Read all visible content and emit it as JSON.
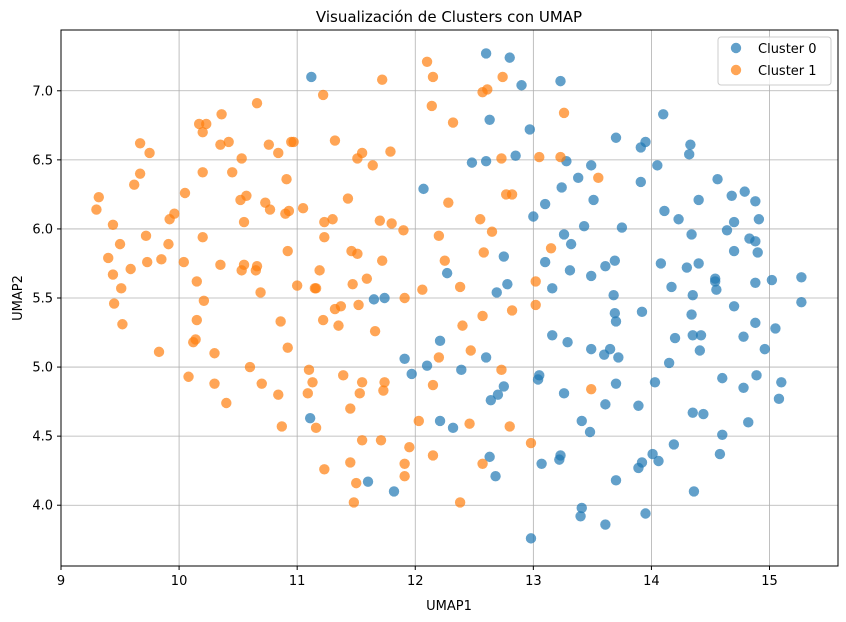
{
  "chart_data": {
    "type": "scatter",
    "title": "Visualización de Clusters con UMAP",
    "xlabel": "UMAP1",
    "ylabel": "UMAP2",
    "xlim": [
      9.0,
      15.58
    ],
    "ylim": [
      3.56,
      7.44
    ],
    "xticks": [
      9,
      10,
      11,
      12,
      13,
      14,
      15
    ],
    "yticks": [
      4.0,
      4.5,
      5.0,
      5.5,
      6.0,
      6.5,
      7.0
    ],
    "xtick_labels": [
      "9",
      "10",
      "11",
      "12",
      "13",
      "14",
      "15"
    ],
    "ytick_labels": [
      "4.0",
      "4.5",
      "5.0",
      "5.5",
      "6.0",
      "6.5",
      "7.0"
    ],
    "grid": true,
    "legend_position": "top-right",
    "series": [
      {
        "name": "Cluster 0",
        "color": "#1f77b4",
        "points": [
          [
            11.12,
            7.1
          ],
          [
            12.6,
            7.27
          ],
          [
            12.8,
            7.24
          ],
          [
            13.23,
            7.07
          ],
          [
            12.9,
            7.04
          ],
          [
            14.1,
            6.83
          ],
          [
            12.63,
            6.79
          ],
          [
            12.97,
            6.72
          ],
          [
            13.7,
            6.66
          ],
          [
            13.95,
            6.63
          ],
          [
            14.33,
            6.61
          ],
          [
            14.32,
            6.54
          ],
          [
            13.91,
            6.59
          ],
          [
            12.85,
            6.53
          ],
          [
            12.6,
            6.49
          ],
          [
            12.48,
            6.48
          ],
          [
            13.28,
            6.49
          ],
          [
            13.49,
            6.46
          ],
          [
            14.05,
            6.46
          ],
          [
            14.56,
            6.36
          ],
          [
            13.38,
            6.37
          ],
          [
            13.24,
            6.3
          ],
          [
            13.91,
            6.34
          ],
          [
            14.79,
            6.27
          ],
          [
            14.68,
            6.24
          ],
          [
            14.88,
            6.2
          ],
          [
            14.4,
            6.21
          ],
          [
            13.51,
            6.21
          ],
          [
            13.1,
            6.18
          ],
          [
            12.07,
            6.29
          ],
          [
            14.11,
            6.13
          ],
          [
            14.23,
            6.07
          ],
          [
            14.91,
            6.07
          ],
          [
            14.7,
            6.05
          ],
          [
            13.0,
            6.09
          ],
          [
            13.75,
            6.01
          ],
          [
            13.43,
            6.02
          ],
          [
            14.64,
            5.99
          ],
          [
            14.34,
            5.96
          ],
          [
            13.26,
            5.96
          ],
          [
            14.83,
            5.93
          ],
          [
            14.88,
            5.91
          ],
          [
            13.32,
            5.89
          ],
          [
            14.7,
            5.84
          ],
          [
            14.9,
            5.83
          ],
          [
            12.75,
            5.8
          ],
          [
            13.69,
            5.77
          ],
          [
            14.08,
            5.75
          ],
          [
            13.61,
            5.73
          ],
          [
            14.3,
            5.72
          ],
          [
            14.4,
            5.75
          ],
          [
            13.31,
            5.7
          ],
          [
            13.1,
            5.76
          ],
          [
            12.27,
            5.68
          ],
          [
            15.27,
            5.65
          ],
          [
            14.54,
            5.64
          ],
          [
            14.54,
            5.62
          ],
          [
            12.78,
            5.6
          ],
          [
            13.49,
            5.66
          ],
          [
            14.17,
            5.58
          ],
          [
            14.88,
            5.61
          ],
          [
            15.02,
            5.63
          ],
          [
            13.16,
            5.57
          ],
          [
            12.69,
            5.54
          ],
          [
            13.68,
            5.52
          ],
          [
            14.35,
            5.52
          ],
          [
            14.55,
            5.56
          ],
          [
            14.7,
            5.44
          ],
          [
            15.27,
            5.47
          ],
          [
            11.65,
            5.49
          ],
          [
            11.74,
            5.5
          ],
          [
            13.92,
            5.4
          ],
          [
            13.69,
            5.39
          ],
          [
            14.34,
            5.38
          ],
          [
            13.7,
            5.33
          ],
          [
            14.88,
            5.32
          ],
          [
            15.05,
            5.28
          ],
          [
            14.42,
            5.23
          ],
          [
            13.16,
            5.23
          ],
          [
            14.35,
            5.23
          ],
          [
            14.2,
            5.21
          ],
          [
            14.78,
            5.22
          ],
          [
            12.21,
            5.19
          ],
          [
            13.29,
            5.18
          ],
          [
            13.49,
            5.13
          ],
          [
            13.65,
            5.13
          ],
          [
            14.41,
            5.12
          ],
          [
            14.96,
            5.13
          ],
          [
            13.6,
            5.09
          ],
          [
            13.72,
            5.07
          ],
          [
            12.6,
            5.07
          ],
          [
            11.91,
            5.06
          ],
          [
            14.15,
            5.03
          ],
          [
            12.1,
            5.01
          ],
          [
            11.97,
            4.95
          ],
          [
            12.39,
            4.98
          ],
          [
            13.05,
            4.94
          ],
          [
            13.04,
            4.91
          ],
          [
            14.6,
            4.92
          ],
          [
            14.89,
            4.94
          ],
          [
            14.03,
            4.89
          ],
          [
            13.7,
            4.88
          ],
          [
            15.1,
            4.89
          ],
          [
            12.75,
            4.86
          ],
          [
            12.7,
            4.8
          ],
          [
            14.78,
            4.85
          ],
          [
            13.26,
            4.81
          ],
          [
            15.08,
            4.77
          ],
          [
            12.64,
            4.76
          ],
          [
            13.89,
            4.72
          ],
          [
            13.61,
            4.73
          ],
          [
            14.35,
            4.67
          ],
          [
            14.44,
            4.66
          ],
          [
            11.11,
            4.63
          ],
          [
            12.21,
            4.61
          ],
          [
            12.32,
            4.56
          ],
          [
            13.41,
            4.61
          ],
          [
            14.82,
            4.6
          ],
          [
            13.48,
            4.53
          ],
          [
            14.6,
            4.51
          ],
          [
            14.19,
            4.44
          ],
          [
            14.01,
            4.37
          ],
          [
            14.06,
            4.32
          ],
          [
            14.58,
            4.37
          ],
          [
            13.23,
            4.36
          ],
          [
            12.63,
            4.35
          ],
          [
            13.22,
            4.33
          ],
          [
            13.92,
            4.31
          ],
          [
            13.07,
            4.3
          ],
          [
            13.89,
            4.27
          ],
          [
            12.68,
            4.21
          ],
          [
            11.6,
            4.17
          ],
          [
            13.7,
            4.18
          ],
          [
            11.82,
            4.1
          ],
          [
            14.36,
            4.1
          ],
          [
            13.41,
            3.98
          ],
          [
            13.4,
            3.92
          ],
          [
            13.95,
            3.94
          ],
          [
            13.61,
            3.86
          ],
          [
            12.98,
            3.76
          ]
        ]
      },
      {
        "name": "Cluster 1",
        "color": "#ff7f0e",
        "points": [
          [
            12.1,
            7.21
          ],
          [
            11.72,
            7.08
          ],
          [
            12.15,
            7.1
          ],
          [
            12.74,
            7.1
          ],
          [
            11.22,
            6.97
          ],
          [
            12.61,
            7.01
          ],
          [
            12.57,
            6.99
          ],
          [
            12.14,
            6.89
          ],
          [
            10.66,
            6.91
          ],
          [
            10.36,
            6.83
          ],
          [
            13.26,
            6.84
          ],
          [
            10.17,
            6.76
          ],
          [
            10.23,
            6.76
          ],
          [
            12.32,
            6.77
          ],
          [
            10.2,
            6.7
          ],
          [
            9.67,
            6.62
          ],
          [
            10.42,
            6.63
          ],
          [
            10.35,
            6.61
          ],
          [
            10.76,
            6.61
          ],
          [
            10.95,
            6.63
          ],
          [
            10.97,
            6.63
          ],
          [
            11.32,
            6.64
          ],
          [
            9.75,
            6.55
          ],
          [
            10.84,
            6.55
          ],
          [
            11.79,
            6.56
          ],
          [
            10.53,
            6.51
          ],
          [
            11.55,
            6.55
          ],
          [
            11.51,
            6.51
          ],
          [
            12.73,
            6.51
          ],
          [
            13.05,
            6.52
          ],
          [
            13.23,
            6.52
          ],
          [
            9.62,
            6.32
          ],
          [
            9.67,
            6.4
          ],
          [
            10.45,
            6.41
          ],
          [
            10.2,
            6.41
          ],
          [
            11.64,
            6.46
          ],
          [
            10.91,
            6.36
          ],
          [
            13.55,
            6.37
          ],
          [
            10.05,
            6.26
          ],
          [
            10.57,
            6.24
          ],
          [
            10.52,
            6.21
          ],
          [
            10.73,
            6.19
          ],
          [
            11.05,
            6.15
          ],
          [
            9.32,
            6.23
          ],
          [
            9.3,
            6.14
          ],
          [
            10.77,
            6.14
          ],
          [
            10.9,
            6.11
          ],
          [
            10.93,
            6.13
          ],
          [
            12.28,
            6.19
          ],
          [
            11.43,
            6.22
          ],
          [
            12.77,
            6.25
          ],
          [
            12.82,
            6.25
          ],
          [
            9.96,
            6.11
          ],
          [
            9.92,
            6.07
          ],
          [
            11.7,
            6.06
          ],
          [
            11.8,
            6.04
          ],
          [
            11.23,
            6.05
          ],
          [
            11.3,
            6.07
          ],
          [
            12.55,
            6.07
          ],
          [
            10.55,
            6.05
          ],
          [
            9.44,
            6.03
          ],
          [
            11.9,
            5.99
          ],
          [
            12.65,
            5.98
          ],
          [
            9.72,
            5.95
          ],
          [
            10.2,
            5.94
          ],
          [
            11.23,
            5.94
          ],
          [
            12.2,
            5.95
          ],
          [
            9.5,
            5.89
          ],
          [
            9.91,
            5.89
          ],
          [
            13.15,
            5.86
          ],
          [
            11.46,
            5.84
          ],
          [
            10.92,
            5.84
          ],
          [
            11.51,
            5.82
          ],
          [
            12.58,
            5.83
          ],
          [
            9.4,
            5.79
          ],
          [
            9.73,
            5.76
          ],
          [
            9.85,
            5.78
          ],
          [
            10.04,
            5.76
          ],
          [
            10.55,
            5.74
          ],
          [
            10.35,
            5.74
          ],
          [
            10.66,
            5.73
          ],
          [
            11.72,
            5.77
          ],
          [
            12.25,
            5.77
          ],
          [
            9.59,
            5.71
          ],
          [
            10.53,
            5.7
          ],
          [
            10.65,
            5.7
          ],
          [
            11.19,
            5.7
          ],
          [
            11.59,
            5.64
          ],
          [
            9.44,
            5.67
          ],
          [
            12.06,
            5.56
          ],
          [
            11.0,
            5.59
          ],
          [
            11.15,
            5.57
          ],
          [
            11.16,
            5.57
          ],
          [
            11.47,
            5.6
          ],
          [
            12.38,
            5.58
          ],
          [
            13.02,
            5.62
          ],
          [
            9.51,
            5.57
          ],
          [
            10.15,
            5.62
          ],
          [
            10.21,
            5.48
          ],
          [
            10.69,
            5.54
          ],
          [
            11.91,
            5.5
          ],
          [
            11.52,
            5.45
          ],
          [
            11.37,
            5.44
          ],
          [
            11.32,
            5.42
          ],
          [
            12.57,
            5.37
          ],
          [
            13.02,
            5.45
          ],
          [
            12.82,
            5.41
          ],
          [
            9.45,
            5.46
          ],
          [
            9.52,
            5.31
          ],
          [
            10.15,
            5.34
          ],
          [
            11.22,
            5.34
          ],
          [
            11.35,
            5.3
          ],
          [
            11.66,
            5.26
          ],
          [
            12.4,
            5.3
          ],
          [
            10.86,
            5.33
          ],
          [
            10.14,
            5.2
          ],
          [
            10.12,
            5.18
          ],
          [
            10.3,
            5.1
          ],
          [
            9.83,
            5.11
          ],
          [
            10.92,
            5.14
          ],
          [
            12.2,
            5.07
          ],
          [
            12.47,
            5.12
          ],
          [
            12.73,
            4.98
          ],
          [
            11.1,
            4.98
          ],
          [
            10.6,
            5.0
          ],
          [
            10.08,
            4.93
          ],
          [
            11.39,
            4.94
          ],
          [
            11.13,
            4.89
          ],
          [
            11.55,
            4.89
          ],
          [
            11.74,
            4.89
          ],
          [
            12.15,
            4.87
          ],
          [
            10.3,
            4.88
          ],
          [
            10.7,
            4.88
          ],
          [
            10.84,
            4.8
          ],
          [
            11.09,
            4.81
          ],
          [
            11.53,
            4.81
          ],
          [
            11.73,
            4.83
          ],
          [
            13.49,
            4.84
          ],
          [
            10.4,
            4.74
          ],
          [
            11.45,
            4.7
          ],
          [
            12.03,
            4.61
          ],
          [
            12.46,
            4.59
          ],
          [
            10.87,
            4.57
          ],
          [
            11.16,
            4.56
          ],
          [
            12.8,
            4.57
          ],
          [
            11.55,
            4.47
          ],
          [
            11.71,
            4.47
          ],
          [
            12.98,
            4.45
          ],
          [
            11.95,
            4.42
          ],
          [
            12.15,
            4.36
          ],
          [
            11.45,
            4.31
          ],
          [
            11.91,
            4.3
          ],
          [
            12.57,
            4.3
          ],
          [
            11.23,
            4.26
          ],
          [
            11.91,
            4.21
          ],
          [
            11.5,
            4.16
          ],
          [
            11.48,
            4.02
          ],
          [
            12.38,
            4.02
          ]
        ]
      }
    ]
  }
}
